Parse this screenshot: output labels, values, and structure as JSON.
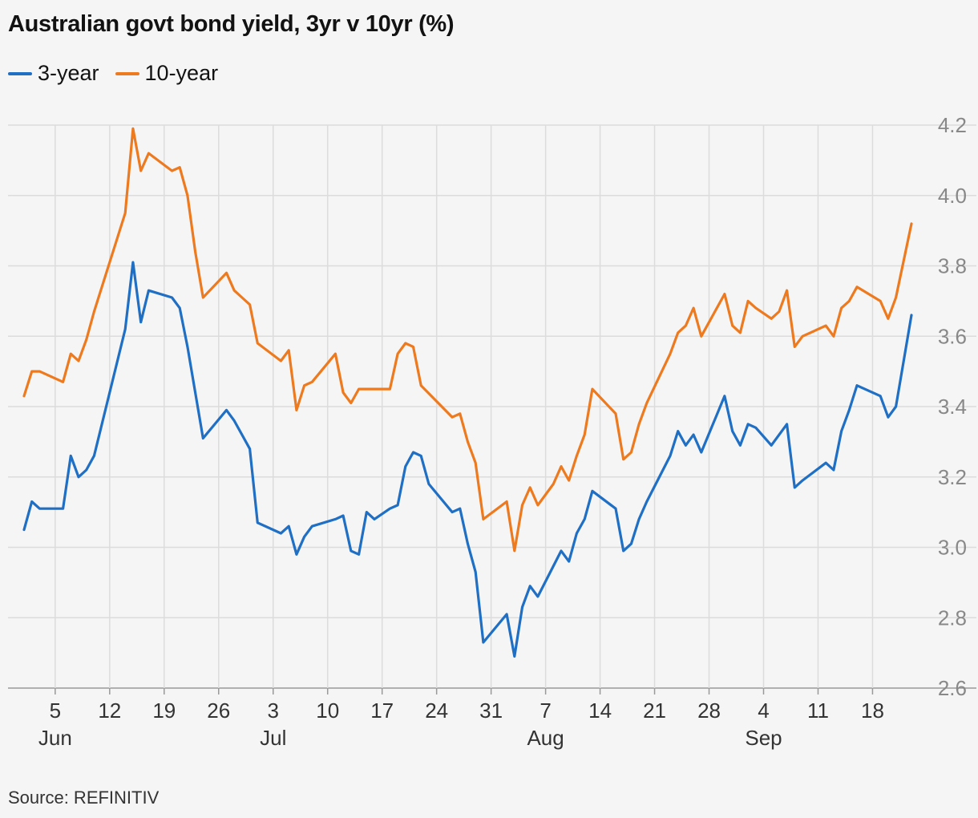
{
  "chart_data": {
    "type": "line",
    "title": "Australian govt bond yield, 3yr v 10yr (%)",
    "source": "Source: REFINITIV",
    "ylim": [
      2.6,
      4.2
    ],
    "yticks": [
      "2.6",
      "2.8",
      "3.0",
      "3.2",
      "3.4",
      "3.6",
      "3.8",
      "4.0",
      "4.2"
    ],
    "xlim": [
      "2022-06-01",
      "2022-09-23"
    ],
    "grid": true,
    "legend": "top-left",
    "xticks": [
      {
        "date": "2022-06-05",
        "label": "5",
        "month": "Jun"
      },
      {
        "date": "2022-06-12",
        "label": "12",
        "month": ""
      },
      {
        "date": "2022-06-19",
        "label": "19",
        "month": ""
      },
      {
        "date": "2022-06-26",
        "label": "26",
        "month": ""
      },
      {
        "date": "2022-07-03",
        "label": "3",
        "month": "Jul"
      },
      {
        "date": "2022-07-10",
        "label": "10",
        "month": ""
      },
      {
        "date": "2022-07-17",
        "label": "17",
        "month": ""
      },
      {
        "date": "2022-07-24",
        "label": "24",
        "month": ""
      },
      {
        "date": "2022-07-31",
        "label": "31",
        "month": ""
      },
      {
        "date": "2022-08-07",
        "label": "7",
        "month": "Aug"
      },
      {
        "date": "2022-08-14",
        "label": "14",
        "month": ""
      },
      {
        "date": "2022-08-21",
        "label": "21",
        "month": ""
      },
      {
        "date": "2022-08-28",
        "label": "28",
        "month": ""
      },
      {
        "date": "2022-09-04",
        "label": "4",
        "month": "Sep"
      },
      {
        "date": "2022-09-11",
        "label": "11",
        "month": ""
      },
      {
        "date": "2022-09-18",
        "label": "18",
        "month": ""
      }
    ],
    "series": [
      {
        "name": "3-year",
        "color": "#1f6fc5",
        "points": [
          [
            "2022-06-01",
            3.05
          ],
          [
            "2022-06-02",
            3.13
          ],
          [
            "2022-06-03",
            3.11
          ],
          [
            "2022-06-06",
            3.11
          ],
          [
            "2022-06-07",
            3.26
          ],
          [
            "2022-06-08",
            3.2
          ],
          [
            "2022-06-09",
            3.22
          ],
          [
            "2022-06-10",
            3.26
          ],
          [
            "2022-06-14",
            3.62
          ],
          [
            "2022-06-15",
            3.81
          ],
          [
            "2022-06-16",
            3.64
          ],
          [
            "2022-06-17",
            3.73
          ],
          [
            "2022-06-20",
            3.71
          ],
          [
            "2022-06-21",
            3.68
          ],
          [
            "2022-06-22",
            3.57
          ],
          [
            "2022-06-23",
            3.44
          ],
          [
            "2022-06-24",
            3.31
          ],
          [
            "2022-06-27",
            3.39
          ],
          [
            "2022-06-28",
            3.36
          ],
          [
            "2022-06-29",
            3.32
          ],
          [
            "2022-06-30",
            3.28
          ],
          [
            "2022-07-01",
            3.07
          ],
          [
            "2022-07-04",
            3.04
          ],
          [
            "2022-07-05",
            3.06
          ],
          [
            "2022-07-06",
            2.98
          ],
          [
            "2022-07-07",
            3.03
          ],
          [
            "2022-07-08",
            3.06
          ],
          [
            "2022-07-11",
            3.08
          ],
          [
            "2022-07-12",
            3.09
          ],
          [
            "2022-07-13",
            2.99
          ],
          [
            "2022-07-14",
            2.98
          ],
          [
            "2022-07-15",
            3.1
          ],
          [
            "2022-07-16",
            3.08
          ],
          [
            "2022-07-18",
            3.11
          ],
          [
            "2022-07-19",
            3.12
          ],
          [
            "2022-07-20",
            3.23
          ],
          [
            "2022-07-21",
            3.27
          ],
          [
            "2022-07-22",
            3.26
          ],
          [
            "2022-07-23",
            3.18
          ],
          [
            "2022-07-26",
            3.1
          ],
          [
            "2022-07-27",
            3.11
          ],
          [
            "2022-07-28",
            3.01
          ],
          [
            "2022-07-29",
            2.93
          ],
          [
            "2022-07-30",
            2.73
          ],
          [
            "2022-08-02",
            2.81
          ],
          [
            "2022-08-03",
            2.69
          ],
          [
            "2022-08-04",
            2.83
          ],
          [
            "2022-08-05",
            2.89
          ],
          [
            "2022-08-06",
            2.86
          ],
          [
            "2022-08-09",
            2.99
          ],
          [
            "2022-08-10",
            2.96
          ],
          [
            "2022-08-11",
            3.04
          ],
          [
            "2022-08-12",
            3.08
          ],
          [
            "2022-08-13",
            3.16
          ],
          [
            "2022-08-16",
            3.11
          ],
          [
            "2022-08-17",
            2.99
          ],
          [
            "2022-08-18",
            3.01
          ],
          [
            "2022-08-19",
            3.08
          ],
          [
            "2022-08-20",
            3.13
          ],
          [
            "2022-08-23",
            3.26
          ],
          [
            "2022-08-24",
            3.33
          ],
          [
            "2022-08-25",
            3.29
          ],
          [
            "2022-08-26",
            3.32
          ],
          [
            "2022-08-27",
            3.27
          ],
          [
            "2022-08-30",
            3.43
          ],
          [
            "2022-08-31",
            3.33
          ],
          [
            "2022-09-01",
            3.29
          ],
          [
            "2022-09-02",
            3.35
          ],
          [
            "2022-09-03",
            3.34
          ],
          [
            "2022-09-05",
            3.29
          ],
          [
            "2022-09-07",
            3.35
          ],
          [
            "2022-09-08",
            3.17
          ],
          [
            "2022-09-09",
            3.19
          ],
          [
            "2022-09-12",
            3.24
          ],
          [
            "2022-09-13",
            3.22
          ],
          [
            "2022-09-14",
            3.33
          ],
          [
            "2022-09-15",
            3.39
          ],
          [
            "2022-09-16",
            3.46
          ],
          [
            "2022-09-19",
            3.43
          ],
          [
            "2022-09-20",
            3.37
          ],
          [
            "2022-09-21",
            3.4
          ],
          [
            "2022-09-23",
            3.66
          ]
        ]
      },
      {
        "name": "10-year",
        "color": "#ee7a1f",
        "points": [
          [
            "2022-06-01",
            3.43
          ],
          [
            "2022-06-02",
            3.5
          ],
          [
            "2022-06-03",
            3.5
          ],
          [
            "2022-06-06",
            3.47
          ],
          [
            "2022-06-07",
            3.55
          ],
          [
            "2022-06-08",
            3.53
          ],
          [
            "2022-06-09",
            3.59
          ],
          [
            "2022-06-10",
            3.67
          ],
          [
            "2022-06-14",
            3.95
          ],
          [
            "2022-06-15",
            4.19
          ],
          [
            "2022-06-16",
            4.07
          ],
          [
            "2022-06-17",
            4.12
          ],
          [
            "2022-06-20",
            4.07
          ],
          [
            "2022-06-21",
            4.08
          ],
          [
            "2022-06-22",
            4.0
          ],
          [
            "2022-06-23",
            3.84
          ],
          [
            "2022-06-24",
            3.71
          ],
          [
            "2022-06-27",
            3.78
          ],
          [
            "2022-06-28",
            3.73
          ],
          [
            "2022-06-29",
            3.71
          ],
          [
            "2022-06-30",
            3.69
          ],
          [
            "2022-07-01",
            3.58
          ],
          [
            "2022-07-04",
            3.53
          ],
          [
            "2022-07-05",
            3.56
          ],
          [
            "2022-07-06",
            3.39
          ],
          [
            "2022-07-07",
            3.46
          ],
          [
            "2022-07-08",
            3.47
          ],
          [
            "2022-07-11",
            3.55
          ],
          [
            "2022-07-12",
            3.44
          ],
          [
            "2022-07-13",
            3.41
          ],
          [
            "2022-07-14",
            3.45
          ],
          [
            "2022-07-15",
            3.45
          ],
          [
            "2022-07-18",
            3.45
          ],
          [
            "2022-07-19",
            3.55
          ],
          [
            "2022-07-20",
            3.58
          ],
          [
            "2022-07-21",
            3.57
          ],
          [
            "2022-07-22",
            3.46
          ],
          [
            "2022-07-26",
            3.37
          ],
          [
            "2022-07-27",
            3.38
          ],
          [
            "2022-07-28",
            3.3
          ],
          [
            "2022-07-29",
            3.24
          ],
          [
            "2022-07-30",
            3.08
          ],
          [
            "2022-08-02",
            3.13
          ],
          [
            "2022-08-03",
            2.99
          ],
          [
            "2022-08-04",
            3.12
          ],
          [
            "2022-08-05",
            3.17
          ],
          [
            "2022-08-06",
            3.12
          ],
          [
            "2022-08-08",
            3.18
          ],
          [
            "2022-08-09",
            3.23
          ],
          [
            "2022-08-10",
            3.19
          ],
          [
            "2022-08-11",
            3.26
          ],
          [
            "2022-08-12",
            3.32
          ],
          [
            "2022-08-13",
            3.45
          ],
          [
            "2022-08-16",
            3.38
          ],
          [
            "2022-08-17",
            3.25
          ],
          [
            "2022-08-18",
            3.27
          ],
          [
            "2022-08-19",
            3.35
          ],
          [
            "2022-08-20",
            3.41
          ],
          [
            "2022-08-23",
            3.55
          ],
          [
            "2022-08-24",
            3.61
          ],
          [
            "2022-08-25",
            3.63
          ],
          [
            "2022-08-26",
            3.68
          ],
          [
            "2022-08-27",
            3.6
          ],
          [
            "2022-08-30",
            3.72
          ],
          [
            "2022-08-31",
            3.63
          ],
          [
            "2022-09-01",
            3.61
          ],
          [
            "2022-09-02",
            3.7
          ],
          [
            "2022-09-03",
            3.68
          ],
          [
            "2022-09-05",
            3.65
          ],
          [
            "2022-09-06",
            3.67
          ],
          [
            "2022-09-07",
            3.73
          ],
          [
            "2022-09-08",
            3.57
          ],
          [
            "2022-09-09",
            3.6
          ],
          [
            "2022-09-12",
            3.63
          ],
          [
            "2022-09-13",
            3.6
          ],
          [
            "2022-09-14",
            3.68
          ],
          [
            "2022-09-15",
            3.7
          ],
          [
            "2022-09-16",
            3.74
          ],
          [
            "2022-09-19",
            3.7
          ],
          [
            "2022-09-20",
            3.65
          ],
          [
            "2022-09-21",
            3.71
          ],
          [
            "2022-09-23",
            3.92
          ]
        ]
      }
    ]
  }
}
